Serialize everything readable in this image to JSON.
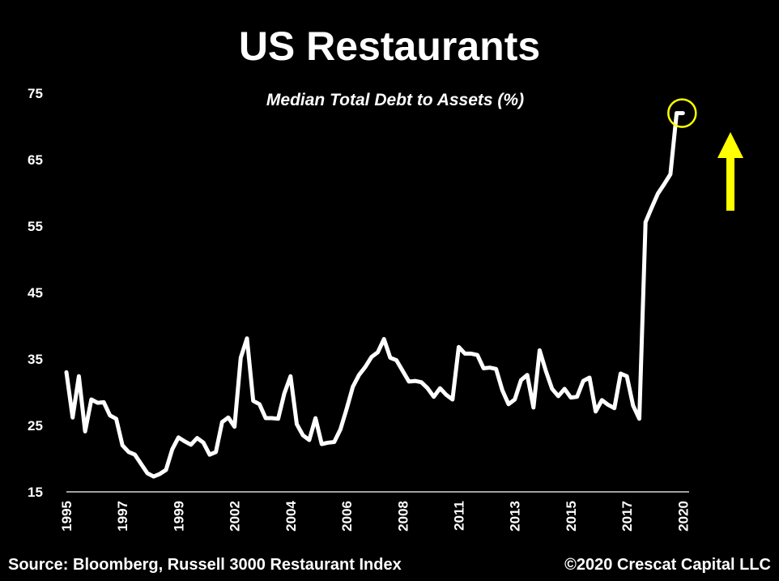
{
  "footer": {
    "source": "Source: Bloomberg, Russell 3000 Restaurant Index",
    "copyright": "©2020 Crescat Capital LLC"
  },
  "colors": {
    "background": "#000000",
    "line": "#ffffff",
    "highlight": "#ffff00"
  },
  "chart_data": {
    "type": "line",
    "title": "US Restaurants",
    "subtitle": "Median Total Debt to Assets (%)",
    "xlabel": "",
    "ylabel": "",
    "xlim": [
      1995,
      2020
    ],
    "ylim": [
      15,
      75
    ],
    "grid": false,
    "legend": "none",
    "y_ticks": [
      15,
      25,
      35,
      45,
      55,
      65,
      75
    ],
    "x_ticks": [
      "1995",
      "1997",
      "1999",
      "2002",
      "2004",
      "2006",
      "2008",
      "2011",
      "2013",
      "2015",
      "2017",
      "2020"
    ],
    "x_tick_positions": [
      1995,
      1997.25,
      1999.5,
      2001.75,
      2004,
      2006.25,
      2008.5,
      2010.75,
      2013,
      2015.25,
      2017.5,
      2019.75
    ],
    "series": [
      {
        "x": [
          1995.0,
          1995.25,
          1995.5,
          1995.75,
          1996.0,
          1996.25,
          1996.5,
          1996.75,
          1997.0,
          1997.25,
          1997.5,
          1997.75,
          1998.0,
          1998.25,
          1998.5,
          1998.75,
          1999.0,
          1999.25,
          1999.5,
          1999.75,
          2000.0,
          2000.25,
          2000.5,
          2000.75,
          2001.0,
          2001.25,
          2001.5,
          2001.75,
          2002.0,
          2002.25,
          2002.5,
          2002.75,
          2003.0,
          2003.25,
          2003.5,
          2003.75,
          2004.0,
          2004.25,
          2004.5,
          2004.75,
          2005.0,
          2005.25,
          2005.5,
          2005.75,
          2006.0,
          2006.25,
          2006.5,
          2006.75,
          2007.0,
          2007.25,
          2007.5,
          2007.75,
          2008.0,
          2008.25,
          2008.5,
          2008.75,
          2009.0,
          2009.25,
          2009.5,
          2009.75,
          2010.0,
          2010.25,
          2010.5,
          2010.75,
          2011.0,
          2011.25,
          2011.5,
          2011.75,
          2012.0,
          2012.25,
          2012.5,
          2012.75,
          2013.0,
          2013.25,
          2013.5,
          2013.75,
          2014.0,
          2014.25,
          2014.5,
          2014.75,
          2015.0,
          2015.25,
          2015.5,
          2015.75,
          2016.0,
          2016.25,
          2016.5,
          2016.75,
          2017.0,
          2017.25,
          2017.5,
          2017.75,
          2018.0,
          2018.25,
          2018.5,
          2018.75,
          2019.0,
          2019.25,
          2019.5,
          2019.75
        ],
        "y": [
          33,
          26.2,
          32.4,
          24.1,
          28.9,
          28.4,
          28.5,
          26.5,
          26,
          22,
          21,
          20.6,
          19.2,
          17.8,
          17.3,
          17.7,
          18.3,
          21.4,
          23.2,
          22.6,
          22.1,
          23.1,
          22.4,
          20.6,
          21,
          25.5,
          26.2,
          24.8,
          35.2,
          38.1,
          28.7,
          28.2,
          26.1,
          26.1,
          26,
          29.8,
          32.4,
          25.2,
          23.5,
          22.8,
          26.1,
          22.2,
          22.4,
          22.5,
          24.4,
          27.5,
          30.8,
          32.6,
          33.8,
          35.3,
          36,
          38,
          35.2,
          34.8,
          33.2,
          31.6,
          31.7,
          31.5,
          30.6,
          29.3,
          30.6,
          29.6,
          28.9,
          36.8,
          35.8,
          35.8,
          35.6,
          33.6,
          33.7,
          33.5,
          30.3,
          28.2,
          28.9,
          31.8,
          32.6,
          27.7,
          36.3,
          33.2,
          30.5,
          29.4,
          30.5,
          29.2,
          29.3,
          31.7,
          32.2,
          27.1,
          28.8,
          28.1,
          27.6,
          32.8,
          32.4,
          28,
          26,
          55.6,
          57.8,
          59.9,
          61.3,
          62.8,
          72,
          72
        ]
      }
    ],
    "highlight_point": [
      2019.75,
      72
    ]
  }
}
